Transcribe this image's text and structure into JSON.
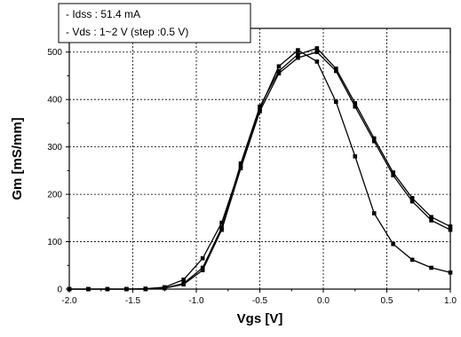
{
  "chart_data": {
    "type": "line",
    "xlabel": "Vgs [V]",
    "ylabel": "Gm [mS/mm]",
    "xlim": [
      -2.0,
      1.0
    ],
    "ylim": [
      0,
      550
    ],
    "xticks": [
      "-2.0",
      "-1.5",
      "-1.0",
      "-0.5",
      "0.0",
      "0.5",
      "1.0"
    ],
    "yticks": [
      "0",
      "100",
      "200",
      "300",
      "400",
      "500"
    ],
    "grid": true,
    "legend_position": "top-left",
    "legend": [
      "- Idss : 51.4 mA",
      "- Vds : 1~2 V (step :0.5 V)"
    ],
    "series": [
      {
        "x": [
          -2.0,
          -1.85,
          -1.7,
          -1.55,
          -1.4,
          -1.25,
          -1.1,
          -0.95,
          -0.8,
          -0.65,
          -0.5,
          -0.35,
          -0.2,
          -0.05,
          0.1,
          0.25,
          0.4,
          0.55,
          0.7,
          0.85,
          1.0
        ],
        "values": [
          0,
          0,
          0,
          0,
          1,
          4,
          20,
          65,
          140,
          260,
          380,
          470,
          504,
          480,
          395,
          280,
          160,
          95,
          62,
          45,
          35
        ]
      },
      {
        "x": [
          -2.0,
          -1.85,
          -1.7,
          -1.55,
          -1.4,
          -1.25,
          -1.1,
          -0.95,
          -0.8,
          -0.65,
          -0.5,
          -0.35,
          -0.2,
          -0.05,
          0.1,
          0.25,
          0.4,
          0.55,
          0.7,
          0.85,
          1.0
        ],
        "values": [
          0,
          0,
          0,
          0,
          0,
          2,
          10,
          40,
          125,
          255,
          375,
          455,
          488,
          500,
          460,
          385,
          312,
          240,
          185,
          145,
          125
        ]
      },
      {
        "x": [
          -2.0,
          -1.85,
          -1.7,
          -1.55,
          -1.4,
          -1.25,
          -1.1,
          -0.95,
          -0.8,
          -0.65,
          -0.5,
          -0.35,
          -0.2,
          -0.05,
          0.1,
          0.25,
          0.4,
          0.55,
          0.7,
          0.85,
          1.0
        ],
        "values": [
          0,
          0,
          0,
          0,
          0,
          2,
          12,
          45,
          130,
          265,
          385,
          460,
          495,
          508,
          465,
          392,
          318,
          246,
          192,
          152,
          132
        ]
      }
    ],
    "colors": {
      "line": "#000000",
      "grid": "#000000",
      "background": "#ffffff"
    }
  }
}
